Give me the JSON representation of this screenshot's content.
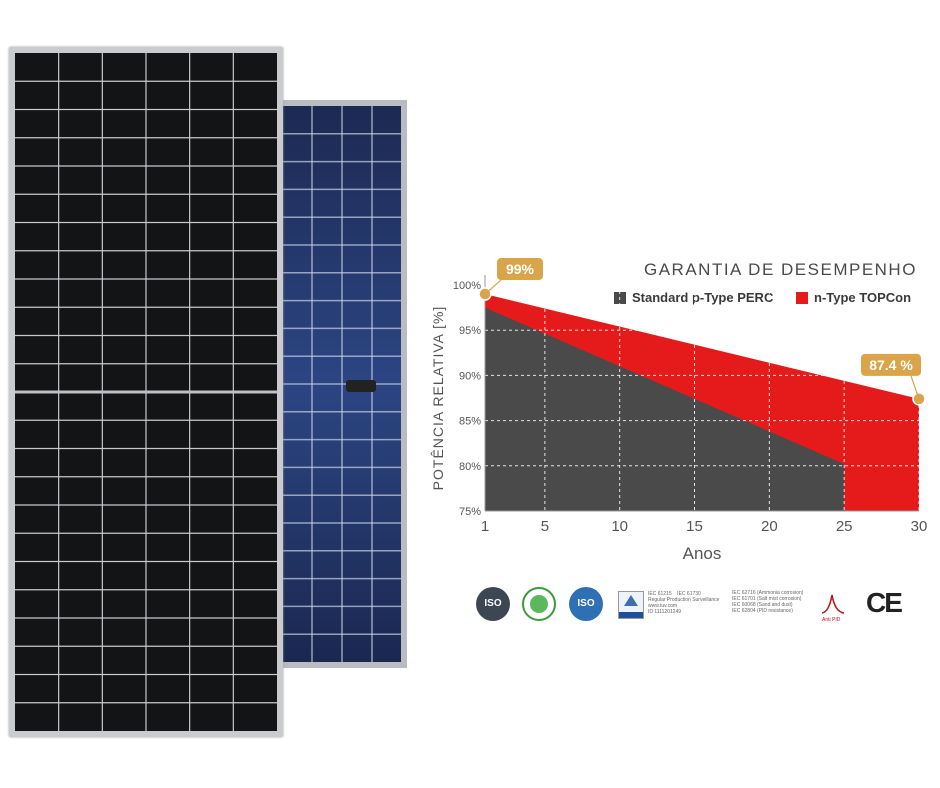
{
  "chart_data": {
    "type": "area",
    "title": "GARANTIA DE DESEMPENHO",
    "xlabel": "Anos",
    "ylabel": "POTÊNCIA RELATIVA [%]",
    "xlim": [
      1,
      30
    ],
    "ylim": [
      75,
      100
    ],
    "x_ticks": [
      1,
      5,
      10,
      15,
      20,
      25,
      30
    ],
    "y_ticks": [
      "75%",
      "80%",
      "85%",
      "90%",
      "95%",
      "100%"
    ],
    "y_tick_values": [
      75,
      80,
      85,
      90,
      95,
      100
    ],
    "grid": true,
    "legend_position": "top-right",
    "series": [
      {
        "name": "Standard p-Type PERC",
        "color": "#4a4a4a",
        "x": [
          1,
          1,
          25
        ],
        "y": [
          97.5,
          97.5,
          80.2
        ]
      },
      {
        "name": "n-Type TOPCon",
        "color": "#e51b1b",
        "x": [
          1,
          30
        ],
        "y": [
          99,
          87.4
        ]
      }
    ],
    "annotations": [
      {
        "label": "99%",
        "x": 1,
        "y": 99
      },
      {
        "label": "87.4 %",
        "x": 30,
        "y": 87.4
      }
    ]
  },
  "certifications": {
    "tuv_text_1": "IEC 61215    IEC 61730\nRegular Production Surveillance\nwww.tuv.com\nID 1111201249",
    "tuv_text_2": "IEC 62716 (Ammonia corrosion)\nIEC 61701 (Salt mist corrosion)\nIEC 60068 (Sand and dust)\nIEC 62804 (PID resistance)",
    "iso_label": "ISO",
    "ce_label": "CE",
    "anti_label": "Anti PID"
  }
}
